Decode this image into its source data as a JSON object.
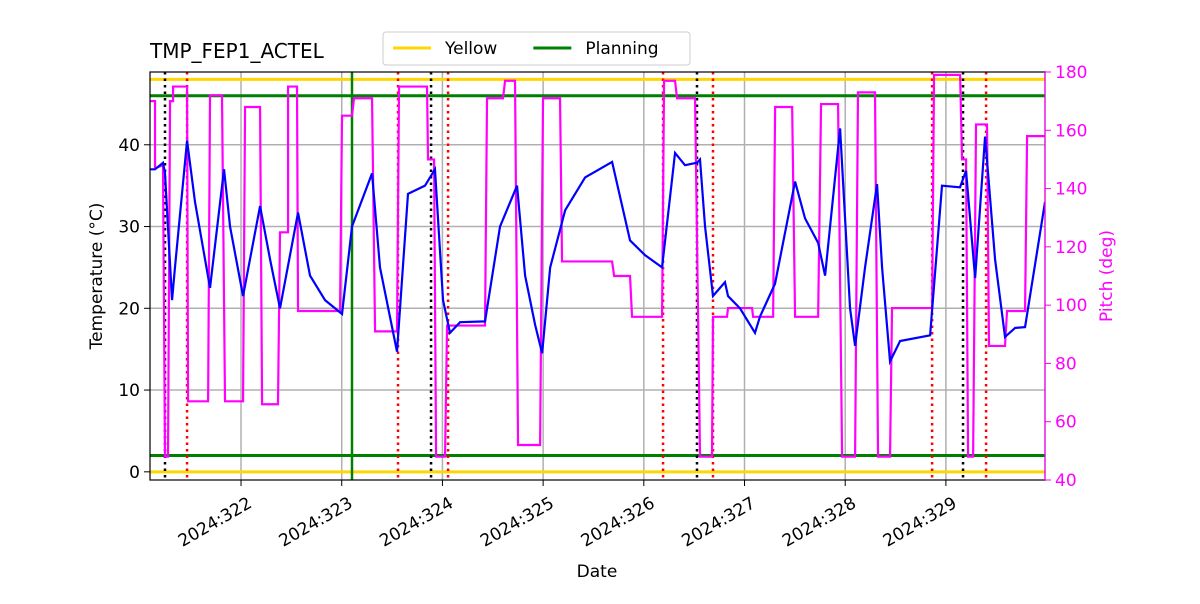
{
  "chart_data": {
    "type": "line",
    "title": "TMP_FEP1_ACTEL",
    "xlabel": "Date",
    "ylabel": "Temperature (°C)",
    "y2label": "Pitch (deg)",
    "xlim": [
      321.096,
      329.984
    ],
    "ylim": [
      -1,
      48.9
    ],
    "y2lim": [
      40,
      180
    ],
    "xticks": [
      {
        "value": 322,
        "label": "2024:322"
      },
      {
        "value": 323,
        "label": "2024:323"
      },
      {
        "value": 324,
        "label": "2024:324"
      },
      {
        "value": 325,
        "label": "2024:325"
      },
      {
        "value": 326,
        "label": "2024:326"
      },
      {
        "value": 327,
        "label": "2024:327"
      },
      {
        "value": 328,
        "label": "2024:328"
      },
      {
        "value": 329,
        "label": "2024:329"
      }
    ],
    "yticks": [
      0,
      10,
      20,
      30,
      40
    ],
    "y2ticks": [
      40,
      60,
      80,
      100,
      120,
      140,
      160,
      180
    ],
    "grid": true,
    "y2color": "#ff00ff",
    "temperature": {
      "color": "#0000ff",
      "x": [
        321.096,
        321.146,
        321.225,
        321.245,
        321.315,
        321.344,
        321.464,
        321.543,
        321.692,
        321.831,
        321.891,
        322.02,
        322.189,
        322.288,
        322.387,
        322.566,
        322.685,
        322.834,
        323.003,
        323.102,
        323.301,
        323.38,
        323.549,
        323.658,
        323.827,
        323.926,
        324.006,
        324.075,
        324.175,
        324.423,
        324.572,
        324.741,
        324.821,
        324.92,
        324.99,
        325.07,
        325.219,
        325.417,
        325.685,
        325.863,
        326.012,
        326.181,
        326.31,
        326.409,
        326.528,
        326.558,
        326.608,
        326.687,
        326.806,
        326.836,
        326.955,
        327.104,
        327.154,
        327.303,
        327.502,
        327.601,
        327.731,
        327.8,
        327.949,
        328.048,
        328.098,
        328.197,
        328.316,
        328.366,
        328.445,
        328.545,
        328.843,
        328.961,
        329.14,
        329.2,
        329.29,
        329.389,
        329.488,
        329.587,
        329.687,
        329.786,
        329.984
      ],
      "values": [
        37,
        37,
        37.8,
        36.5,
        21,
        25,
        40.5,
        33,
        22.5,
        37,
        30,
        21.5,
        32.5,
        26,
        20,
        31.7,
        24,
        21,
        19.3,
        30,
        36.5,
        25,
        14.7,
        34,
        35,
        37,
        21,
        17,
        18.3,
        18.4,
        30,
        35,
        24,
        18,
        14.5,
        25,
        32,
        36,
        37.9,
        28.3,
        26.5,
        25,
        39,
        37.5,
        37.8,
        38.2,
        30,
        21.5,
        23.2,
        21.5,
        20,
        17,
        19,
        23,
        35.5,
        31,
        28,
        24,
        42,
        20,
        15.4,
        25,
        35.2,
        25,
        13.5,
        16,
        16.7,
        35,
        34.8,
        36.8,
        23.7,
        41,
        26,
        16.5,
        17.6,
        17.7,
        33
      ]
    },
    "pitch": {
      "color": "#ff00ff",
      "axis": "y2",
      "x": [
        321.096,
        321.146,
        321.146,
        321.225,
        321.245,
        321.275,
        321.295,
        321.325,
        321.325,
        321.464,
        321.474,
        321.673,
        321.692,
        321.811,
        321.841,
        322.02,
        322.04,
        322.189,
        322.209,
        322.367,
        322.387,
        322.467,
        322.467,
        322.556,
        322.566,
        322.983,
        323.003,
        323.102,
        323.122,
        323.301,
        323.331,
        323.549,
        323.569,
        323.847,
        323.857,
        323.917,
        323.937,
        324.026,
        324.046,
        324.423,
        324.443,
        324.602,
        324.622,
        324.721,
        324.751,
        324.97,
        324.999,
        325.168,
        325.188,
        325.685,
        325.705,
        325.863,
        325.883,
        326.181,
        326.201,
        326.31,
        326.33,
        326.509,
        326.558,
        326.677,
        326.687,
        326.826,
        326.836,
        327.075,
        327.085,
        327.284,
        327.304,
        327.473,
        327.502,
        327.731,
        327.76,
        327.929,
        327.969,
        328.098,
        328.127,
        328.296,
        328.326,
        328.445,
        328.465,
        328.863,
        328.882,
        329.141,
        329.16,
        329.2,
        329.22,
        329.27,
        329.299,
        329.408,
        329.428,
        329.587,
        329.607,
        329.786,
        329.806,
        329.984
      ],
      "values": [
        170,
        170,
        147,
        148,
        48,
        48,
        170,
        170,
        175,
        175,
        67,
        67,
        172,
        172,
        67,
        67,
        168,
        168,
        66,
        66,
        125,
        125,
        175,
        175,
        98,
        98,
        165,
        165,
        171,
        171,
        91,
        91,
        175,
        175,
        150,
        150,
        48,
        48,
        93,
        93,
        171,
        171,
        177,
        177,
        52,
        52,
        171,
        171,
        115,
        115,
        110,
        110,
        96,
        96,
        177,
        177,
        171,
        171,
        48,
        48,
        96,
        96,
        99,
        99,
        96,
        96,
        168,
        168,
        96,
        96,
        169,
        169,
        48,
        48,
        173,
        173,
        48,
        48,
        99,
        99,
        179,
        179,
        150,
        150,
        48,
        48,
        162,
        162,
        86,
        86,
        98,
        98,
        158,
        158
      ]
    },
    "limits": [
      {
        "name": "Yellow",
        "color": "#ffd700",
        "values": [
          0,
          48
        ]
      },
      {
        "name": "Planning",
        "color": "#008000",
        "values": [
          2,
          46
        ]
      }
    ],
    "vlines": [
      {
        "color": "#000000",
        "style": "dotted",
        "x": [
          321.245,
          323.887,
          326.528,
          329.17
        ]
      },
      {
        "color": "#ff0000",
        "style": "dotted",
        "x": [
          321.464,
          323.559,
          324.056,
          326.191,
          326.687,
          328.863,
          329.399
        ]
      },
      {
        "color": "#008000",
        "style": "solid",
        "x": [
          323.102
        ]
      }
    ]
  }
}
